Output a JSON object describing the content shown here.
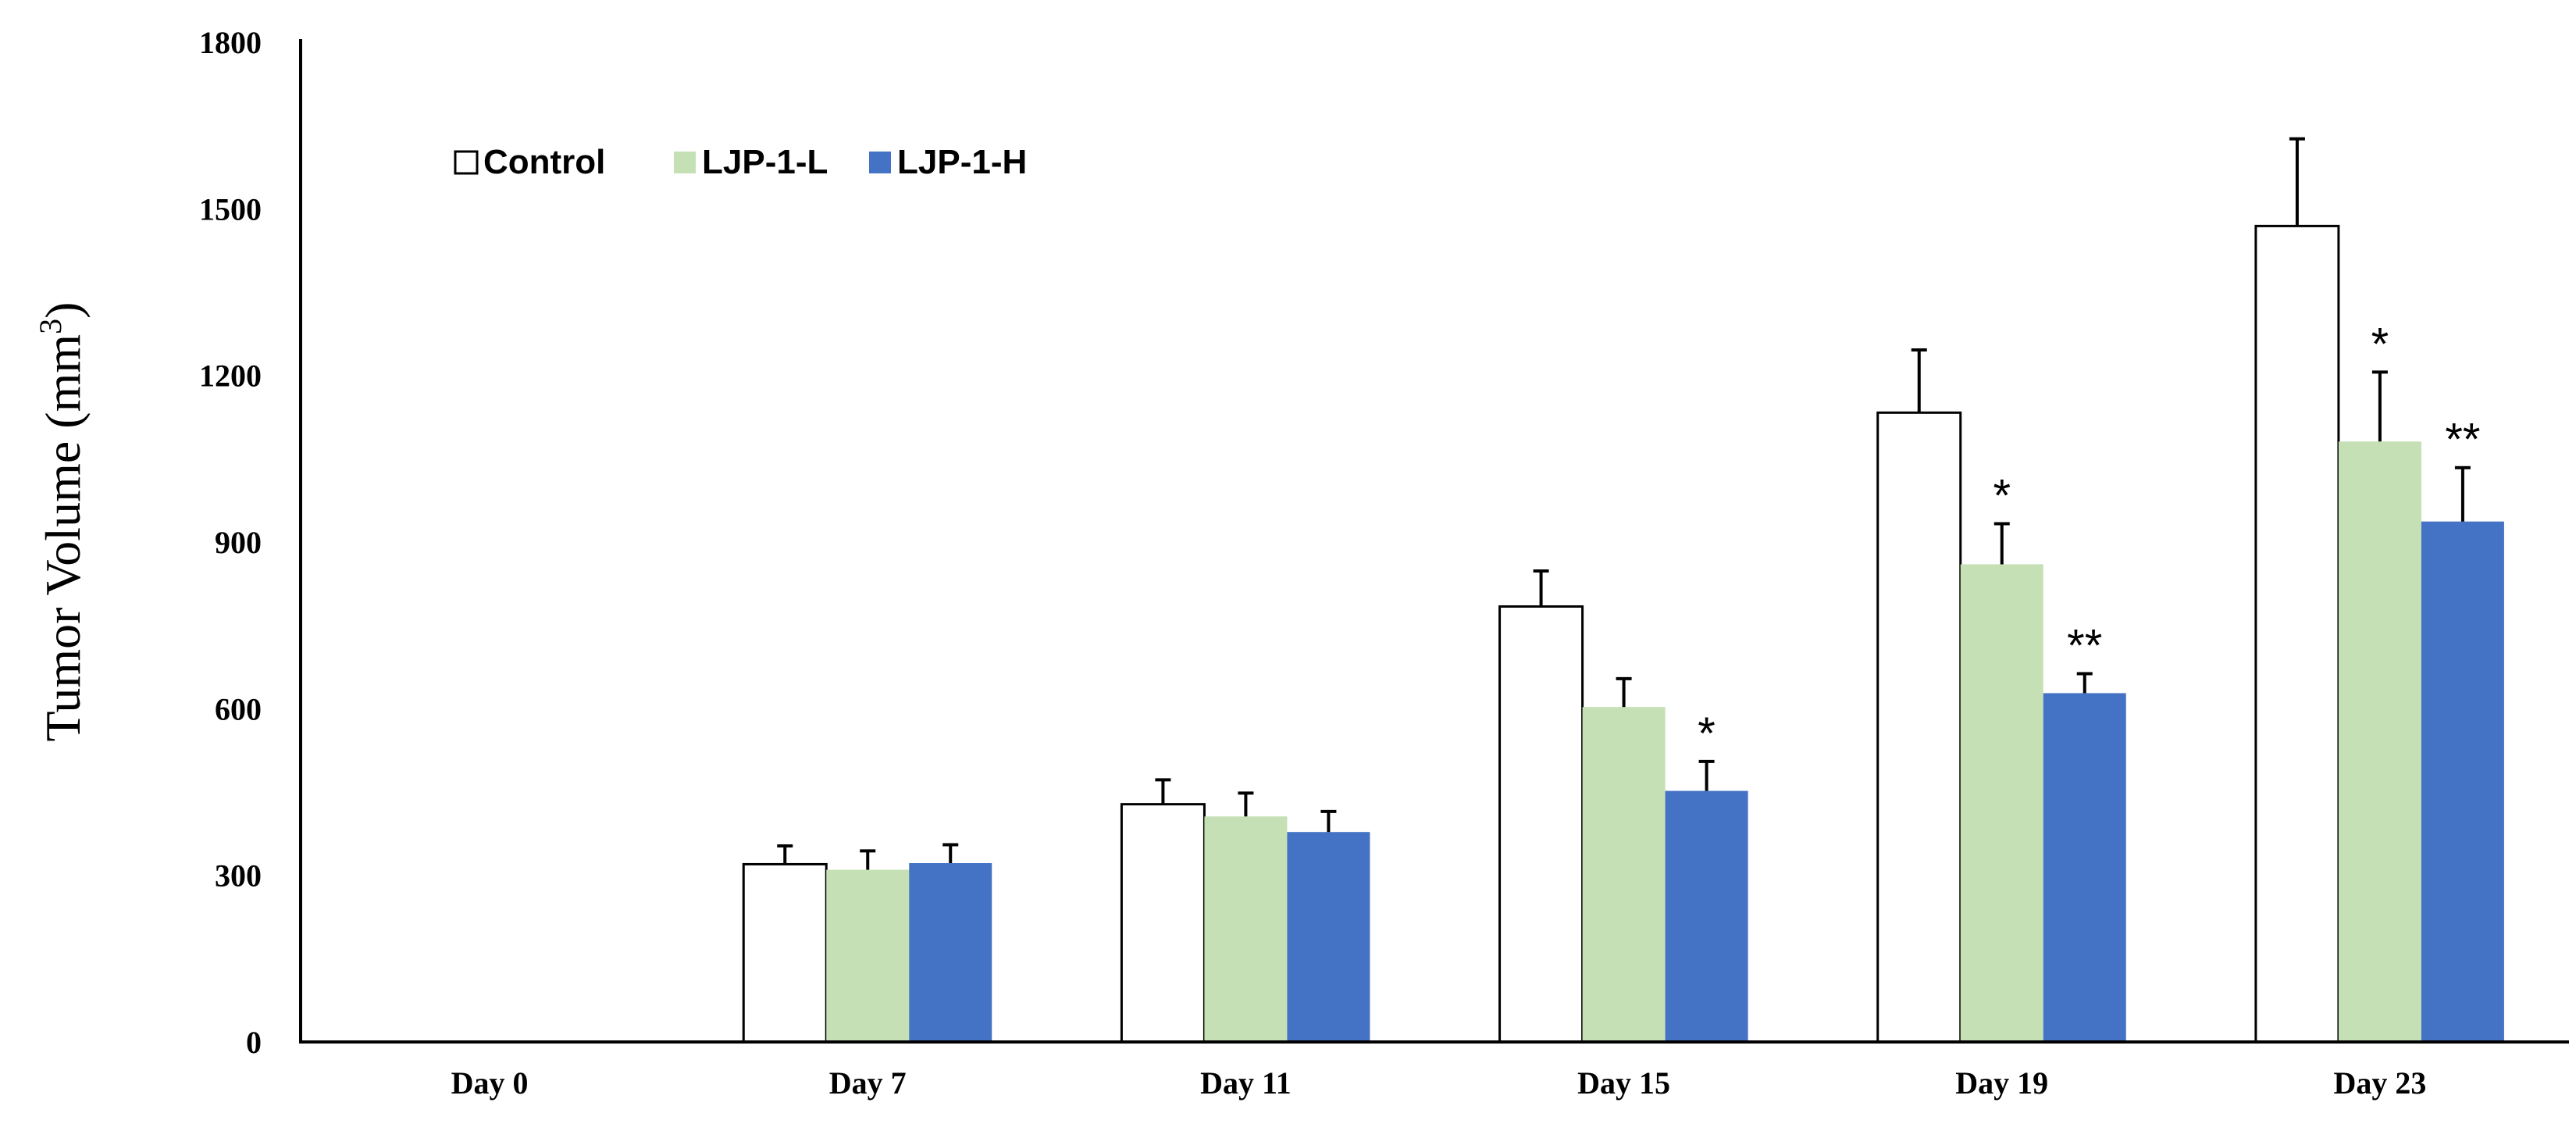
{
  "chart_data": {
    "type": "bar",
    "title": "",
    "xlabel": "",
    "ylabel": "Tumor Volume (mm",
    "ylabel_sup": "3",
    "ylabel_close": ")",
    "ylim": [
      0,
      1800
    ],
    "yticks": [
      0,
      300,
      600,
      900,
      1200,
      1500,
      1800
    ],
    "legend_position": "top-left",
    "categories": [
      "Day 0",
      "Day 7",
      "Day 11",
      "Day 15",
      "Day 19",
      "Day 23"
    ],
    "series": [
      {
        "name": "Control",
        "color": "#ffffff",
        "values": [
          0,
          320,
          428,
          784,
          1133,
          1469
        ],
        "errors": [
          0,
          33,
          44,
          64,
          113,
          157
        ],
        "significance": [
          "",
          "",
          "",
          "",
          "",
          ""
        ]
      },
      {
        "name": "LJP-1-L",
        "color": "#c5e0b4",
        "values": [
          0,
          310,
          406,
          603,
          860,
          1081
        ],
        "errors": [
          0,
          34,
          42,
          51,
          73,
          125
        ],
        "significance": [
          "",
          "",
          "",
          "",
          "*",
          "*"
        ]
      },
      {
        "name": "LJP-1-H",
        "color": "#4472c4",
        "values": [
          0,
          322,
          378,
          452,
          628,
          937
        ],
        "errors": [
          0,
          33,
          37,
          53,
          35,
          97
        ],
        "significance": [
          "",
          "",
          "",
          "*",
          "**",
          "**"
        ]
      }
    ]
  }
}
